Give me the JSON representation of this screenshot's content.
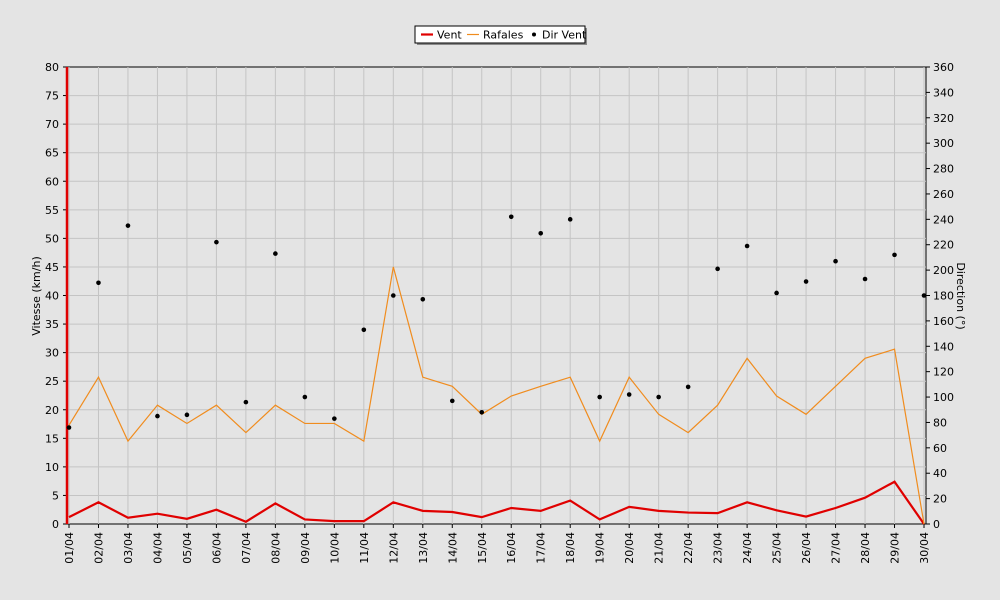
{
  "chart_data": {
    "type": "line",
    "legend": {
      "placement": "top-center",
      "entries": [
        {
          "name": "Vent",
          "color": "#e00000"
        },
        {
          "name": "Rafales",
          "color": "#f08c1e"
        },
        {
          "name": "Dir Vent",
          "color": "#000000"
        }
      ]
    },
    "grid": true,
    "categories": [
      "01/04",
      "02/04",
      "03/04",
      "04/04",
      "05/04",
      "06/04",
      "07/04",
      "08/04",
      "09/04",
      "10/04",
      "11/04",
      "12/04",
      "13/04",
      "14/04",
      "15/04",
      "16/04",
      "17/04",
      "18/04",
      "19/04",
      "20/04",
      "21/04",
      "22/04",
      "23/04",
      "24/04",
      "25/04",
      "26/04",
      "27/04",
      "28/04",
      "29/04",
      "30/04"
    ],
    "ylabel_left": "Vitesse (km/h)",
    "ylabel_right": "Direction (°)",
    "ylim_left": [
      0,
      80
    ],
    "ylim_right": [
      0,
      360
    ],
    "yticks_left": [
      "0",
      "5",
      "10",
      "15",
      "20",
      "25",
      "30",
      "35",
      "40",
      "45",
      "50",
      "55",
      "60",
      "65",
      "70",
      "75",
      "80"
    ],
    "yticks_right": [
      "0",
      "20",
      "40",
      "60",
      "80",
      "100",
      "120",
      "140",
      "160",
      "180",
      "200",
      "220",
      "240",
      "260",
      "280",
      "300",
      "320",
      "340",
      "360"
    ],
    "series": [
      {
        "name": "Vent",
        "axis": "left",
        "style": "line",
        "color": "#e00000",
        "values": [
          1.2,
          3.8,
          1.1,
          1.8,
          0.9,
          2.5,
          0.4,
          3.6,
          0.8,
          0.5,
          0.5,
          3.8,
          2.3,
          2.1,
          1.2,
          2.8,
          2.3,
          4.1,
          0.8,
          3.0,
          2.3,
          2.0,
          1.9,
          3.8,
          2.4,
          1.3,
          2.8,
          4.6,
          7.4,
          0
        ]
      },
      {
        "name": "Rafales",
        "axis": "left",
        "style": "line",
        "color": "#f08c1e",
        "values": [
          17.3,
          25.7,
          14.5,
          20.8,
          17.6,
          20.8,
          16.0,
          20.8,
          17.6,
          17.6,
          14.5,
          45.0,
          25.7,
          24.1,
          19.2,
          22.4,
          24.1,
          25.7,
          14.5,
          25.7,
          19.2,
          16.0,
          20.8,
          29.0,
          22.4,
          19.2,
          24.1,
          29.0,
          30.6,
          0
        ]
      },
      {
        "name": "Dir Vent",
        "axis": "right",
        "style": "scatter",
        "color": "#000000",
        "values": [
          76,
          190,
          235,
          85,
          86,
          222,
          96,
          213,
          100,
          83,
          153,
          180,
          177,
          97,
          88,
          242,
          229,
          240,
          100,
          102,
          100,
          108,
          201,
          219,
          182,
          191,
          207,
          193,
          212,
          180
        ]
      }
    ]
  }
}
